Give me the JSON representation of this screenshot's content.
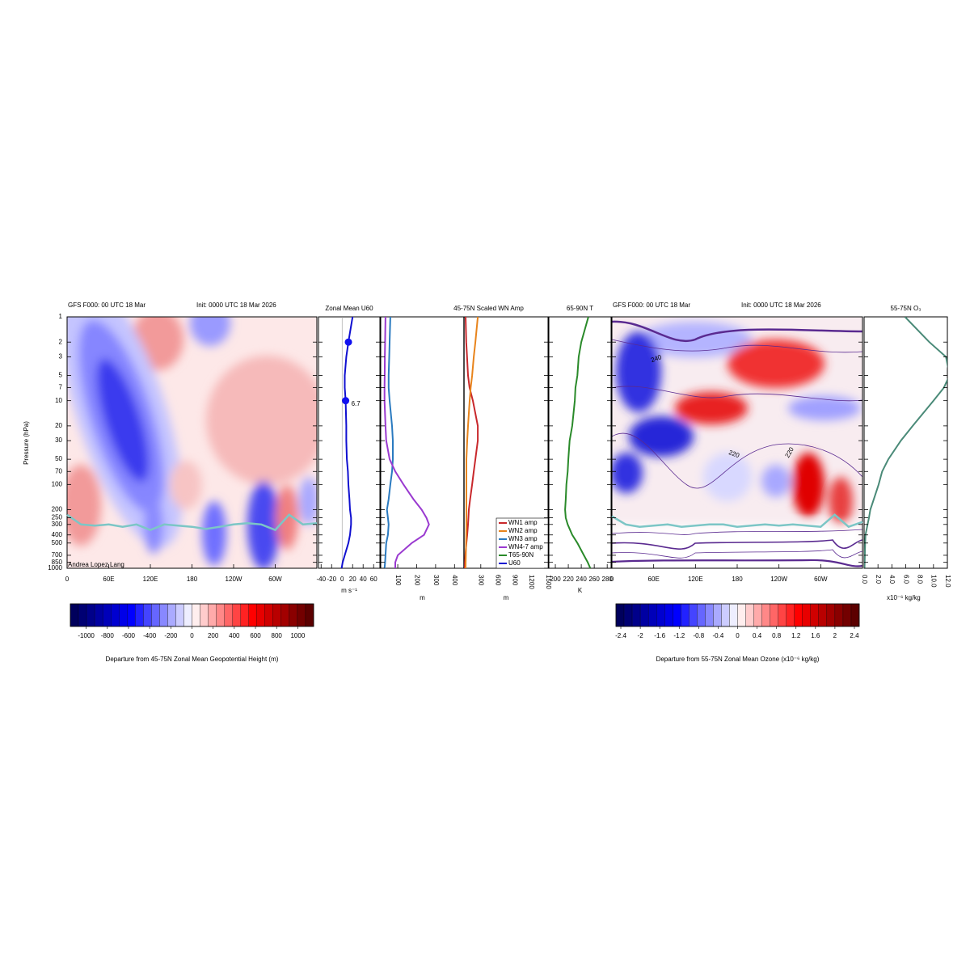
{
  "chart_data": [
    {
      "type": "contour",
      "title": "GFS F000: 00 UTC 18 Mar",
      "subtitle": "Init: 0000 UTC 18 Mar 2026",
      "ylabel": "Pressure (hPa)",
      "credit": "Andrea Lopez Lang",
      "ylim": [
        1000,
        1
      ],
      "log_y": true,
      "yticks": [
        1,
        2,
        3,
        5,
        7,
        10,
        20,
        30,
        50,
        70,
        100,
        200,
        250,
        300,
        400,
        500,
        700,
        850,
        1000
      ],
      "xlim": [
        0,
        360
      ],
      "xticks": [
        0,
        {
          "value": 60,
          "label": "60E"
        },
        {
          "value": 120,
          "label": "120E"
        },
        180,
        {
          "value": 240,
          "label": "120W"
        },
        {
          "value": 300,
          "label": "60W"
        }
      ],
      "series": [
        {
          "color": "#7cc6c6",
          "x": [
            0,
            20,
            40,
            60,
            80,
            100,
            120,
            140,
            160,
            180,
            200,
            220,
            240,
            260,
            280,
            300,
            320,
            340,
            360
          ],
          "values": [
            230,
            300,
            310,
            300,
            320,
            300,
            350,
            300,
            310,
            320,
            340,
            320,
            300,
            290,
            300,
            350,
            230,
            300,
            290
          ]
        }
      ],
      "colorbar": {
        "label": "Departure from 45-75N Zonal Mean Geopotential Height (m)",
        "lim": [
          -1150,
          1150
        ],
        "ticks": [
          -1000,
          -800,
          -600,
          -400,
          -200,
          0,
          200,
          400,
          600,
          800,
          1000
        ],
        "colors": [
          "#000050",
          "#0000ff",
          "#ffffff",
          "#ff0000",
          "#500000"
        ]
      }
    },
    {
      "type": "profile",
      "title": "Zonal Mean U60",
      "xlabel": "m s⁻¹",
      "xlim": [
        -45,
        72
      ],
      "xticks": [
        -40,
        -20,
        0,
        20,
        40,
        60
      ],
      "y": [
        1,
        2,
        3,
        5,
        7,
        10,
        20,
        30,
        50,
        70,
        100,
        150,
        200,
        250,
        300,
        400,
        500,
        700,
        850,
        1000
      ],
      "series": [
        {
          "name": "U60",
          "color": "#1010d0",
          "values": [
            20,
            12,
            8,
            5,
            5,
            6.7,
            8,
            8,
            9,
            11,
            12,
            14,
            15,
            17,
            17,
            15,
            12,
            5,
            1,
            -1
          ]
        }
      ],
      "markers": {
        "y": [
          2,
          10
        ],
        "values": [
          12,
          6.7
        ],
        "value_labels": [
          null,
          "6.7"
        ],
        "color": "#1010f0"
      }
    },
    {
      "type": "profile",
      "title": "45-75N Scaled WN Amp",
      "xlabel": "m",
      "rotate_xticks": true,
      "legend": true,
      "xlim": [
        10,
        450
      ],
      "xticks": [
        100,
        200,
        300,
        400
      ],
      "x2lim": [
        0,
        1500
      ],
      "x2ticks": [
        300,
        600,
        900,
        1200,
        1500
      ],
      "y": [
        1,
        2,
        3,
        5,
        7,
        10,
        20,
        30,
        50,
        70,
        100,
        150,
        200,
        250,
        300,
        400,
        500,
        700,
        850,
        1000
      ],
      "series": [
        {
          "name": "WN1 amp",
          "color": "#c8282c",
          "axis": "x2",
          "values": [
            29,
            40,
            55,
            72,
            100,
            159,
            246,
            246,
            203,
            174,
            145,
            110,
            87,
            80,
            72,
            58,
            43,
            25,
            18,
            14
          ]
        },
        {
          "name": "WN2 amp",
          "color": "#e8841c",
          "axis": "x2",
          "values": [
            246,
            203,
            175,
            145,
            120,
            101,
            72,
            58,
            43,
            43,
            43,
            43,
            43,
            43,
            43,
            40,
            38,
            33,
            30,
            29
          ]
        },
        {
          "name": "WN3 amp",
          "color": "#2a7ac0",
          "values": [
            61,
            57,
            55,
            52,
            52,
            57,
            70,
            74,
            74,
            70,
            61,
            52,
            43,
            48,
            52,
            48,
            39,
            35,
            33,
            30
          ]
        },
        {
          "name": "WN4-7 amp",
          "color": "#9a3ad0",
          "values": [
            35,
            33,
            32,
            31,
            30,
            30,
            35,
            39,
            57,
            87,
            130,
            183,
            226,
            252,
            265,
            239,
            174,
            100,
            87,
            87
          ]
        }
      ]
    },
    {
      "type": "profile",
      "title": "65-90N T",
      "xlabel": "K",
      "xlim": [
        190,
        286
      ],
      "xticks": [
        200,
        220,
        240,
        260,
        280
      ],
      "y": [
        1,
        2,
        3,
        5,
        7,
        10,
        20,
        30,
        50,
        70,
        100,
        150,
        200,
        250,
        300,
        400,
        500,
        700,
        850,
        1000
      ],
      "series": [
        {
          "name": "T65-90N",
          "color": "#2a8a2a",
          "values": [
            251,
            240,
            236,
            234,
            231,
            230,
            226,
            222,
            220,
            219,
            217,
            216,
            215,
            216,
            219,
            226,
            234,
            244,
            250,
            254
          ]
        }
      ]
    },
    {
      "type": "contour",
      "title": "GFS F000: 00 UTC 18 Mar",
      "subtitle": "Init: 0000 UTC 18 Mar 2026",
      "annotations": [
        "240",
        "220",
        "220"
      ],
      "xlim": [
        0,
        360
      ],
      "xticks": [
        0,
        {
          "value": 60,
          "label": "60E"
        },
        {
          "value": 120,
          "label": "120E"
        },
        180,
        {
          "value": 240,
          "label": "120W"
        },
        {
          "value": 300,
          "label": "60W"
        }
      ],
      "series": [
        {
          "color": "#7cc6c6",
          "x": [
            0,
            20,
            40,
            60,
            80,
            100,
            120,
            140,
            160,
            180,
            200,
            220,
            240,
            260,
            280,
            300,
            320,
            340,
            360
          ],
          "values": [
            240,
            300,
            320,
            310,
            300,
            320,
            310,
            300,
            300,
            320,
            310,
            300,
            310,
            300,
            310,
            320,
            230,
            320,
            280
          ]
        }
      ],
      "colorbar": {
        "label": "Departure from 55-75N Zonal Mean Ozone (x10⁻⁶ kg/kg)",
        "lim": [
          -2.5,
          2.5
        ],
        "ticks": [
          -2.4,
          -2,
          -1.6,
          -1.2,
          -0.8,
          -0.4,
          0,
          0.4,
          0.8,
          1.2,
          1.6,
          2,
          2.4
        ],
        "colors": [
          "#000050",
          "#0000ff",
          "#ffffff",
          "#ff0000",
          "#500000"
        ]
      }
    },
    {
      "type": "profile",
      "title": "55-75N O₃",
      "xlabel": "x10⁻⁶ kg/kg",
      "rotate_xticks": true,
      "xlim": [
        0,
        12
      ],
      "xticks": [
        {
          "value": 0,
          "label": "0.0"
        },
        {
          "value": 2,
          "label": "2.0"
        },
        {
          "value": 4,
          "label": "4.0"
        },
        {
          "value": 6,
          "label": "6.0"
        },
        {
          "value": 8,
          "label": "8.0"
        },
        {
          "value": 10,
          "label": "10.0"
        },
        {
          "value": 12,
          "label": "12.0"
        }
      ],
      "y": [
        1,
        2,
        3,
        5,
        7,
        10,
        20,
        30,
        50,
        70,
        100,
        150,
        200,
        250,
        300,
        400,
        500,
        700,
        850,
        1000
      ],
      "series": [
        {
          "color": "#4a8a78",
          "values": [
            5.9,
            9.4,
            11.8,
            12.3,
            11.5,
            10,
            7,
            5.3,
            3.5,
            2.6,
            2.1,
            1.4,
            0.9,
            0.7,
            0.5,
            0.2,
            0.15,
            0.1,
            0.08,
            0.06
          ]
        }
      ]
    }
  ]
}
